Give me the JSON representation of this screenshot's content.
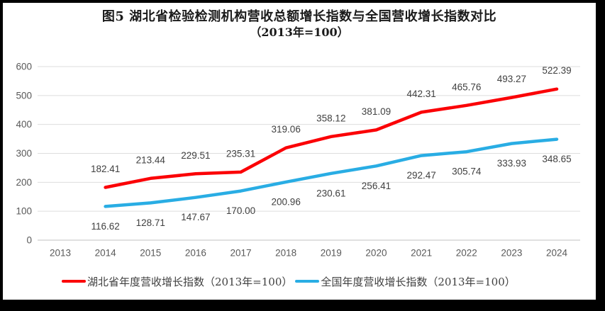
{
  "title": {
    "line1": "图5 湖北省检验检测机构营收总额增长指数与全国营收增长指数对比",
    "line2": "（2013年=100）"
  },
  "chart_data": {
    "type": "line",
    "title": "图5 湖北省检验检测机构营收总额增长指数与全国营收增长指数对比",
    "subtitle": "（2013年=100）",
    "categories": [
      "2013",
      "2014",
      "2015",
      "2016",
      "2017",
      "2018",
      "2019",
      "2020",
      "2021",
      "2022",
      "2023",
      "2024"
    ],
    "ylim": [
      0,
      600
    ],
    "yticks": [
      0,
      100,
      200,
      300,
      400,
      500,
      600
    ],
    "grid": true,
    "legend_position": "bottom",
    "data_labels": true,
    "series": [
      {
        "name": "湖北省年度营收增长指数（2013年=100）",
        "color": "#FB0006",
        "first_category": "2014",
        "label_position": "above",
        "values": [
          182.41,
          213.44,
          229.51,
          235.31,
          319.06,
          358.12,
          381.09,
          442.31,
          465.76,
          493.27,
          522.39
        ]
      },
      {
        "name": "全国年度营收增长指数（2013年=100）",
        "color": "#29ADE4",
        "first_category": "2014",
        "label_position": "below",
        "values": [
          116.62,
          128.71,
          147.67,
          170.0,
          200.96,
          230.61,
          256.41,
          292.47,
          305.74,
          333.93,
          348.65
        ]
      }
    ]
  },
  "colors": {
    "background": "#FFFFFF",
    "frame": "#000000",
    "gridline": "#DEDEDE",
    "axis_line": "#C0C0C0",
    "tick_label": "#595959",
    "data_label": "#404040",
    "title_text": "#1A1A1A"
  }
}
